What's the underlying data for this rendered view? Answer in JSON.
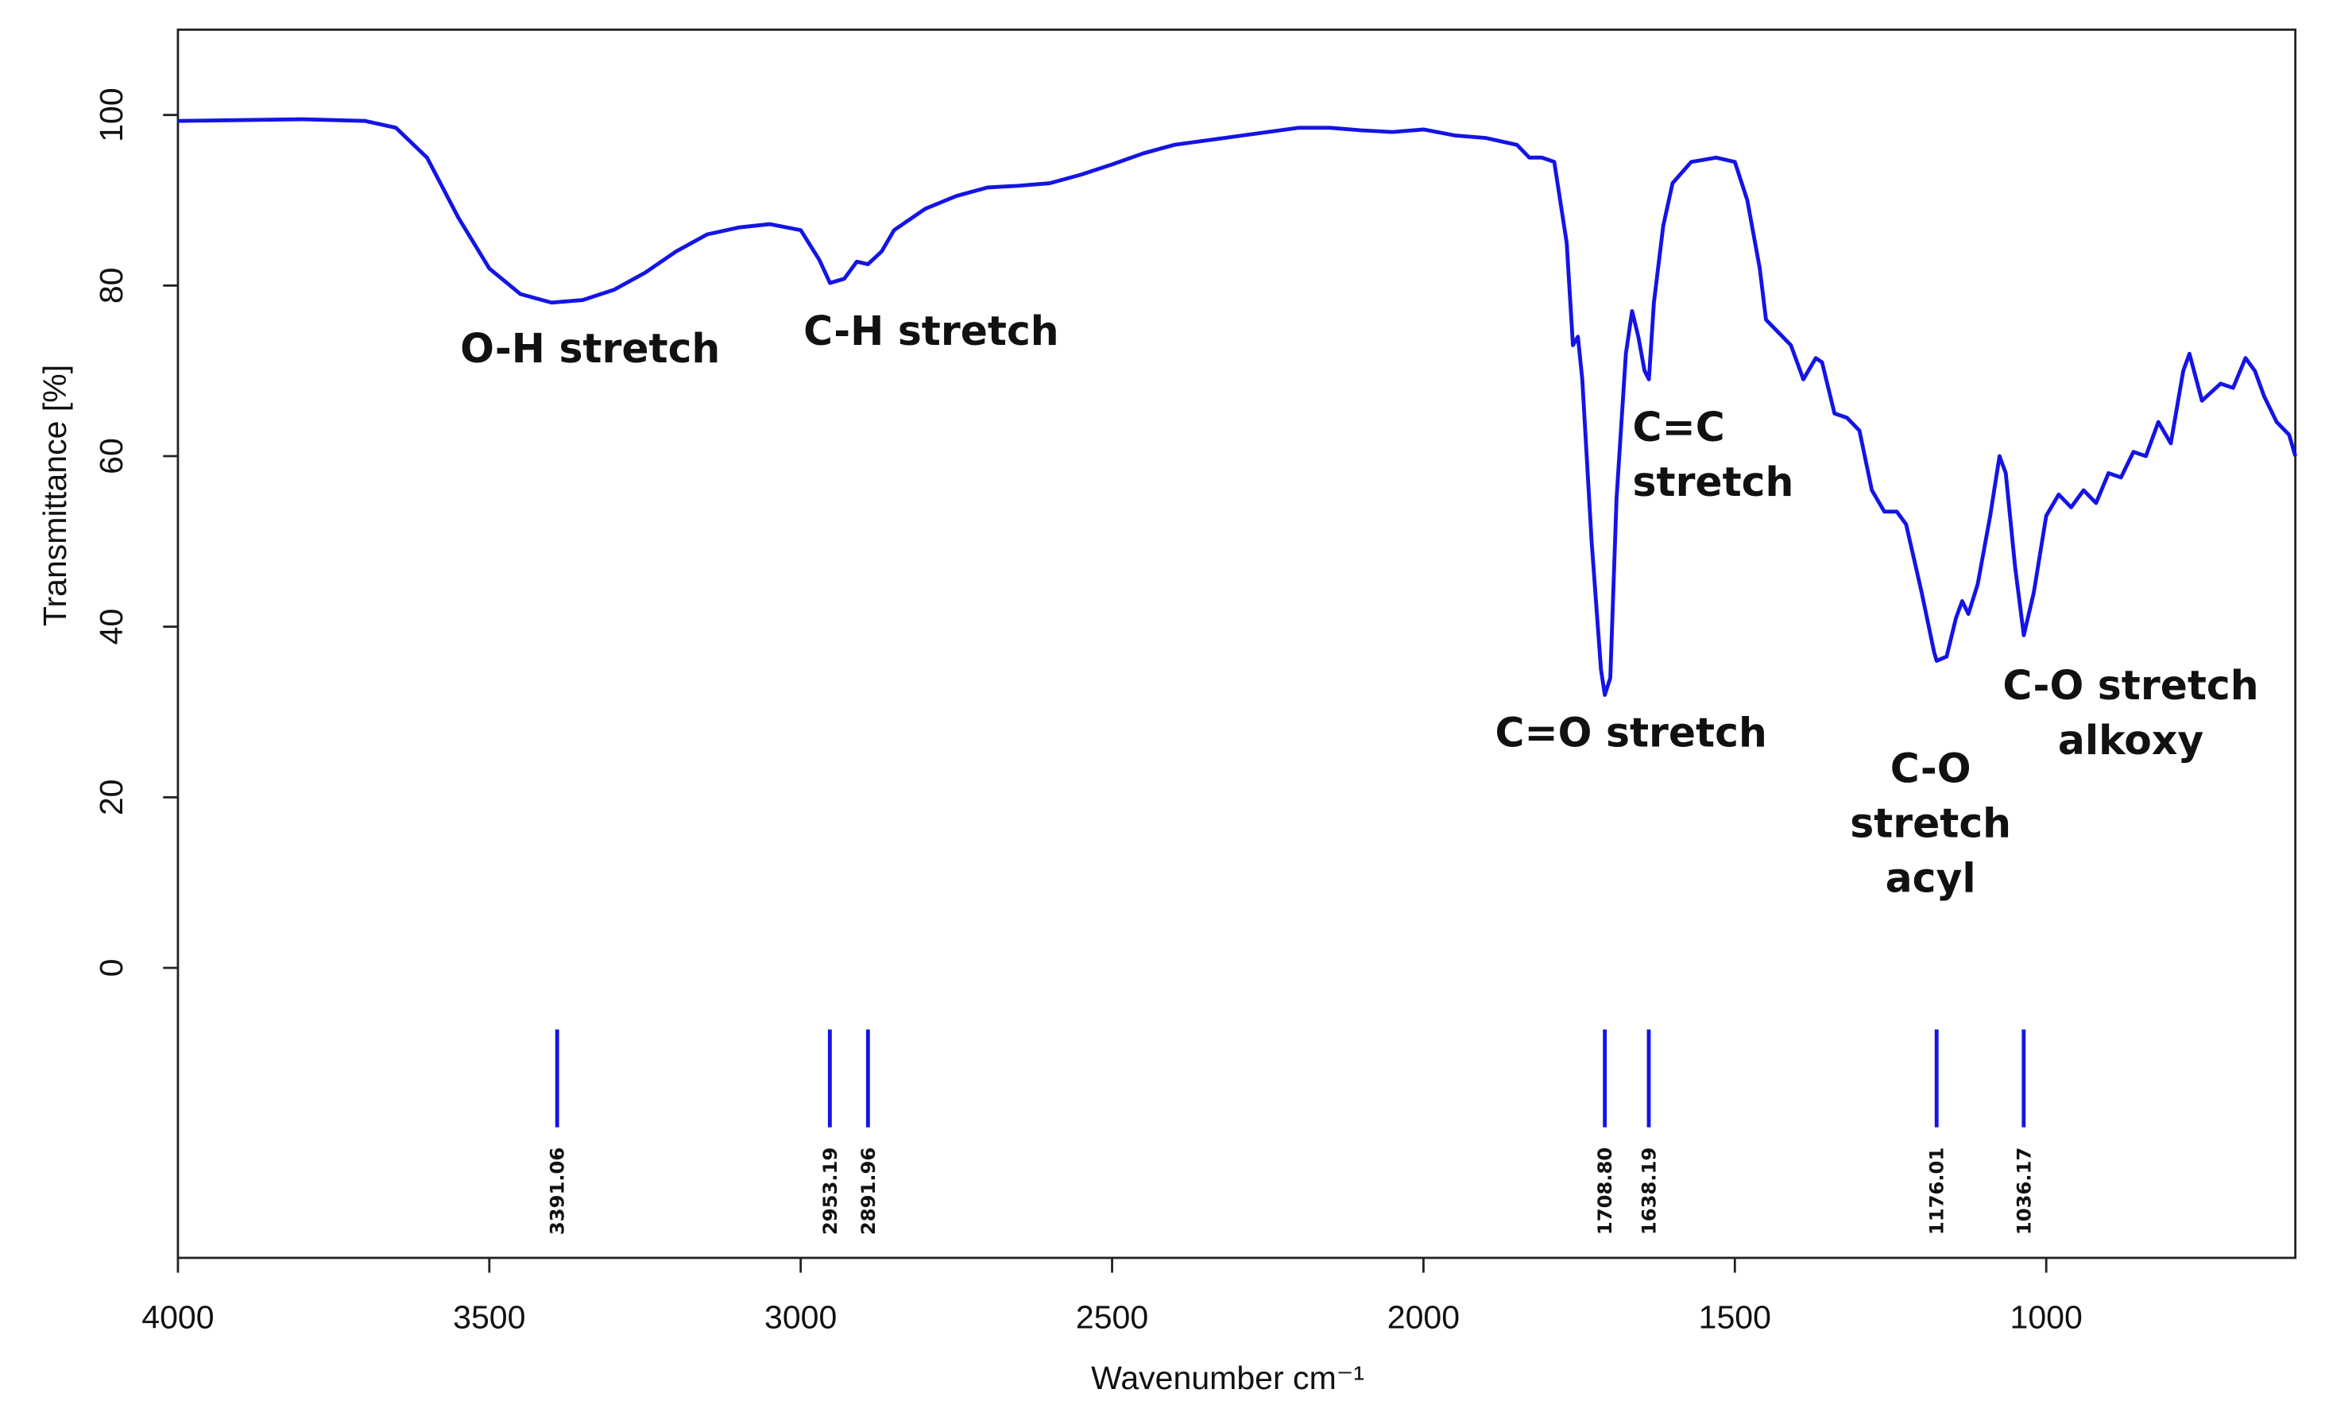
{
  "chart_data": {
    "type": "line",
    "xlabel": "Wavenumber cm⁻¹",
    "ylabel": "Transmittance [%]",
    "color": "#1414e6",
    "xlim": [
      4000,
      600
    ],
    "ylim": [
      -34,
      110
    ],
    "xticks": [
      4000,
      3500,
      3000,
      2500,
      2000,
      1500,
      1000
    ],
    "yticks": [
      0,
      20,
      40,
      60,
      80,
      100
    ],
    "x": [
      4000,
      3800,
      3700,
      3650,
      3600,
      3550,
      3500,
      3450,
      3400,
      3350,
      3300,
      3250,
      3200,
      3150,
      3100,
      3050,
      3000,
      2970,
      2953,
      2930,
      2910,
      2892,
      2870,
      2850,
      2800,
      2750,
      2700,
      2650,
      2600,
      2550,
      2500,
      2450,
      2400,
      2350,
      2300,
      2250,
      2200,
      2150,
      2100,
      2050,
      2000,
      1950,
      1900,
      1850,
      1830,
      1810,
      1790,
      1770,
      1760,
      1752,
      1745,
      1730,
      1715,
      1708.8,
      1700,
      1690,
      1675,
      1665,
      1655,
      1645,
      1638,
      1630,
      1615,
      1600,
      1570,
      1530,
      1500,
      1480,
      1460,
      1450,
      1430,
      1410,
      1390,
      1370,
      1360,
      1340,
      1320,
      1300,
      1280,
      1260,
      1240,
      1225,
      1200,
      1180,
      1176,
      1160,
      1145,
      1135,
      1125,
      1110,
      1090,
      1075,
      1065,
      1050,
      1036,
      1020,
      1000,
      980,
      960,
      940,
      920,
      900,
      880,
      860,
      840,
      820,
      800,
      780,
      770,
      750,
      720,
      700,
      680,
      665,
      650,
      630,
      610,
      600
    ],
    "values": [
      99.3,
      99.5,
      99.3,
      98.5,
      95,
      88,
      82,
      79,
      78,
      78.3,
      79.5,
      81.5,
      84,
      86,
      86.8,
      87.2,
      86.5,
      83,
      80.3,
      80.8,
      82.8,
      82.5,
      84,
      86.5,
      89,
      90.5,
      91.5,
      91.7,
      92,
      93,
      94.2,
      95.5,
      96.5,
      97,
      97.5,
      98,
      98.5,
      98.5,
      98.2,
      98,
      98.3,
      97.6,
      97.3,
      96.5,
      95,
      95,
      94.5,
      85,
      73,
      74,
      69,
      50,
      35,
      32,
      34,
      55,
      72,
      77,
      74,
      70,
      69,
      78,
      87,
      92,
      94.5,
      95,
      94.5,
      90,
      82,
      76,
      74.5,
      73,
      69,
      71.5,
      71,
      65,
      64.5,
      63,
      56,
      53.5,
      53.5,
      52,
      44,
      37,
      36,
      36.5,
      41,
      43,
      41.5,
      45,
      53,
      60,
      58,
      47,
      39,
      44,
      53,
      55.5,
      54,
      56,
      54.5,
      58,
      57.5,
      60.5,
      60,
      64,
      61.5,
      70,
      72,
      66.5,
      68.5,
      68,
      71.5,
      70,
      67,
      64,
      62.5,
      60
    ],
    "peaks": [
      {
        "value": 3391.06,
        "label": "3391.06"
      },
      {
        "value": 2953.19,
        "label": "2953.19"
      },
      {
        "value": 2891.96,
        "label": "2891.96"
      },
      {
        "value": 1708.8,
        "label": "1708.80"
      },
      {
        "value": 1638.19,
        "label": "1638.19"
      },
      {
        "value": 1176.01,
        "label": "1176.01"
      },
      {
        "value": 1036.17,
        "label": "1036.17"
      }
    ],
    "annotations": [
      [
        "O-H stretch"
      ],
      [
        "C-H stretch"
      ],
      [
        "C=C",
        "stretch"
      ],
      [
        "C=O stretch"
      ],
      [
        "C-O",
        "stretch",
        "acyl"
      ],
      [
        "C-O stretch",
        "alkoxy"
      ]
    ]
  }
}
